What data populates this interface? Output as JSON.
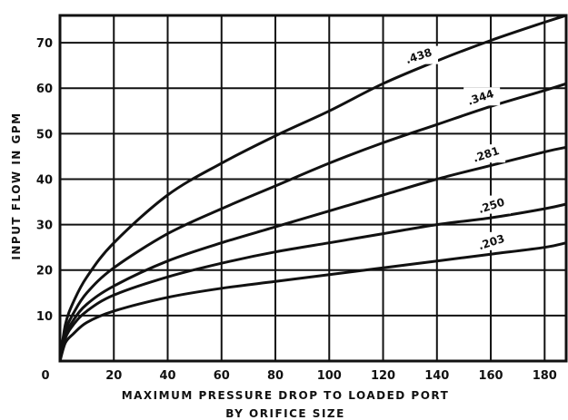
{
  "chart_data": {
    "type": "line",
    "title": "",
    "xlabel_lines": [
      "MAXIMUM PRESSURE DROP TO LOADED PORT",
      "BY ORIFICE SIZE"
    ],
    "ylabel": "INPUT FLOW IN GPM",
    "xlim": [
      0,
      188
    ],
    "ylim": [
      0,
      76
    ],
    "x_ticks": [
      0,
      20,
      40,
      60,
      80,
      100,
      120,
      140,
      160,
      180
    ],
    "y_ticks": [
      10,
      20,
      30,
      40,
      50,
      60,
      70
    ],
    "x_tick_labels": [
      "0",
      "20",
      "40",
      "60",
      "80",
      "100",
      "120",
      "140",
      "160",
      "180"
    ],
    "y_tick_labels": [
      "10",
      "20",
      "30",
      "40",
      "50",
      "60",
      "70"
    ],
    "grid": true,
    "series": [
      {
        "name": ".438",
        "x": [
          0,
          2,
          5,
          10,
          20,
          40,
          60,
          80,
          100,
          120,
          140,
          160,
          180,
          188
        ],
        "y": [
          0,
          8,
          13,
          18.5,
          26,
          36.5,
          43.5,
          49.5,
          55,
          61,
          66,
          70.5,
          74.5,
          76
        ]
      },
      {
        "name": ".344",
        "x": [
          0,
          2,
          5,
          10,
          20,
          40,
          60,
          80,
          100,
          120,
          140,
          160,
          180,
          188
        ],
        "y": [
          0,
          6.5,
          10.5,
          15,
          20.5,
          28,
          33.5,
          38.5,
          43.5,
          48,
          52,
          56,
          59.5,
          61
        ]
      },
      {
        "name": ".281",
        "x": [
          0,
          2,
          5,
          10,
          20,
          40,
          60,
          80,
          100,
          120,
          140,
          160,
          180,
          188
        ],
        "y": [
          0,
          5.5,
          9,
          12.5,
          16.5,
          22,
          26,
          29.5,
          33,
          36.5,
          40,
          43,
          46,
          47
        ]
      },
      {
        "name": ".250",
        "x": [
          0,
          2,
          5,
          10,
          20,
          40,
          60,
          80,
          100,
          120,
          140,
          160,
          180,
          188
        ],
        "y": [
          0,
          5,
          8,
          11,
          14.5,
          18.5,
          21.5,
          24,
          26,
          28,
          30,
          31.5,
          33.5,
          34.5
        ]
      },
      {
        "name": ".203",
        "x": [
          0,
          2,
          5,
          10,
          20,
          40,
          60,
          80,
          100,
          120,
          140,
          160,
          180,
          188
        ],
        "y": [
          0,
          4,
          6,
          8.5,
          11,
          14,
          16,
          17.5,
          19,
          20.5,
          22,
          23.5,
          25,
          26
        ]
      }
    ]
  }
}
